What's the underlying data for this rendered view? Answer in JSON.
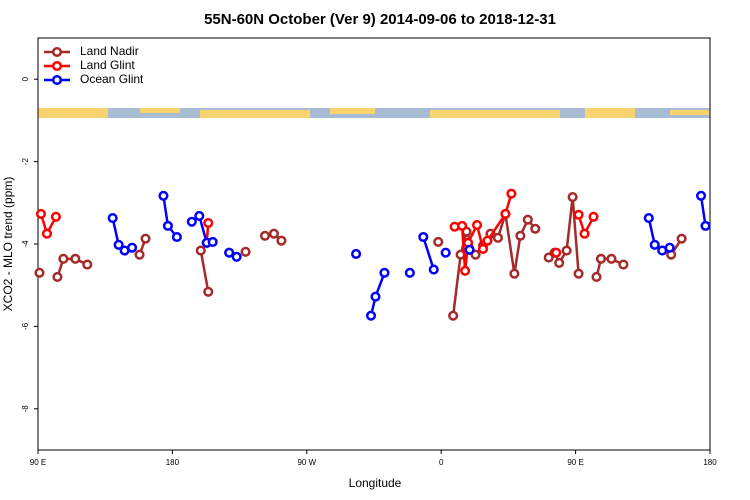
{
  "chart_data": {
    "type": "line",
    "title": "55N-60N October (Ver 9)   2014-09-06 to 2018-12-31",
    "x_label": "Longitude",
    "y_label": "XCO2 - MLO trend (ppm)",
    "xlim": [
      90,
      540
    ],
    "ylim": [
      -9,
      1
    ],
    "xticks": [
      {
        "value": 90,
        "label": "90 E"
      },
      180,
      {
        "value": 270,
        "label": "90 W"
      },
      {
        "value": 360,
        "label": "0"
      },
      {
        "value": 450,
        "label": "90 E"
      },
      {
        "value": 540,
        "label": "180"
      }
    ],
    "yticks": [
      0,
      -2,
      -4,
      -6,
      -8
    ],
    "grid": false,
    "legend": "top-left",
    "series": [
      {
        "name": "Land Nadir",
        "color": "#a52a2a",
        "x": [
          91,
          null,
          103,
          107,
          115,
          123,
          null,
          158,
          162,
          null,
          199,
          204,
          null,
          229,
          null,
          242,
          248,
          253,
          null,
          358,
          null,
          368,
          373,
          377,
          383,
          388,
          393,
          398,
          403,
          409,
          413,
          418,
          423,
          null,
          432,
          436,
          439,
          444,
          448,
          452,
          null,
          464,
          467,
          474,
          482,
          null,
          514,
          521
        ],
        "values": [
          -4.7,
          null,
          -4.8,
          -4.36,
          -4.36,
          -4.5,
          null,
          -4.26,
          -3.87,
          null,
          -4.16,
          -5.16,
          null,
          -4.19,
          null,
          -3.8,
          -3.75,
          -3.92,
          null,
          -3.95,
          null,
          -5.74,
          -4.26,
          -3.7,
          -4.26,
          -4.04,
          -3.75,
          -3.85,
          -3.27,
          -4.72,
          -3.8,
          -3.41,
          -3.63,
          null,
          -4.33,
          -4.21,
          -4.46,
          -4.16,
          -2.86,
          -4.72,
          null,
          -4.8,
          -4.36,
          -4.36,
          -4.5,
          null,
          -4.26,
          -3.87
        ]
      },
      {
        "name": "Land Glint",
        "color": "#ff0000",
        "x": [
          92,
          96,
          102,
          null,
          204,
          203,
          null,
          369,
          374,
          376,
          378,
          384,
          388,
          391,
          403,
          407,
          null,
          437,
          null,
          452,
          456,
          462
        ],
        "values": [
          -3.27,
          -3.75,
          -3.34,
          null,
          -3.49,
          -3.97,
          null,
          -3.58,
          -3.56,
          -4.65,
          -3.97,
          -3.54,
          -4.12,
          -3.92,
          -3.27,
          -2.78,
          null,
          -4.21,
          null,
          -3.29,
          -3.75,
          -3.34
        ]
      },
      {
        "name": "Ocean Glint",
        "color": "#0000ff",
        "x": [
          140,
          144,
          148,
          153,
          null,
          174,
          177,
          183,
          null,
          193,
          198,
          203,
          207,
          null,
          218,
          223,
          null,
          303,
          null,
          313,
          316,
          322,
          null,
          339,
          null,
          348,
          355,
          null,
          363,
          null,
          379,
          null,
          499,
          503,
          508,
          513,
          null,
          534,
          537
        ],
        "values": [
          -3.37,
          -4.02,
          -4.16,
          -4.09,
          null,
          -2.83,
          -3.56,
          -3.83,
          null,
          -3.46,
          -3.32,
          -3.97,
          -3.95,
          null,
          -4.21,
          -4.31,
          null,
          -4.24,
          null,
          -5.74,
          -5.28,
          -4.7,
          null,
          -4.7,
          null,
          -3.83,
          -4.62,
          null,
          -4.21,
          null,
          -4.14,
          null,
          -3.37,
          -4.02,
          -4.16,
          -4.09,
          null,
          -2.83,
          -3.56
        ]
      }
    ]
  }
}
